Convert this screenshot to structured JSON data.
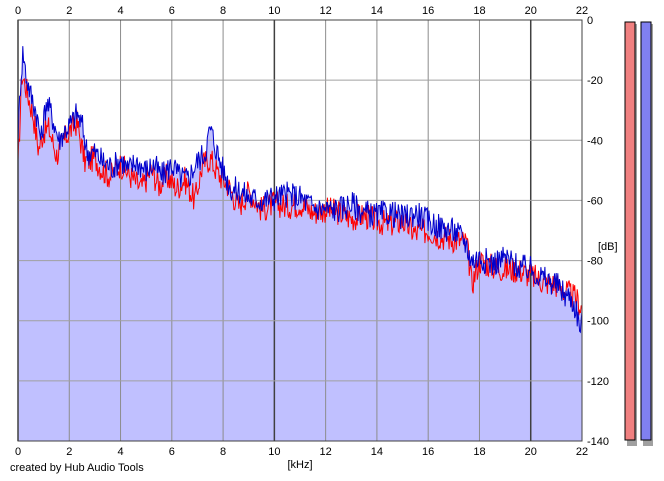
{
  "footer": {
    "credit": "created by Hub Audio Tools"
  },
  "chart_data": {
    "type": "area",
    "xlabel": "[kHz]",
    "ylabel": "[dB]",
    "xlim": [
      0,
      22
    ],
    "ylim": [
      -140,
      0
    ],
    "x_ticks": [
      0,
      2,
      4,
      6,
      8,
      10,
      12,
      14,
      16,
      18,
      20,
      22
    ],
    "y_ticks": [
      0,
      -20,
      -40,
      -60,
      -80,
      -100,
      -120,
      -140
    ],
    "grid": true,
    "fill_color": "#c0c0ff",
    "series": [
      {
        "color": "#ff0000",
        "points": [
          [
            0,
            -50
          ],
          [
            0.15,
            -18
          ],
          [
            0.3,
            -22
          ],
          [
            0.6,
            -32
          ],
          [
            0.8,
            -43
          ],
          [
            1.0,
            -37
          ],
          [
            1.2,
            -36
          ],
          [
            1.5,
            -45
          ],
          [
            2.0,
            -37
          ],
          [
            2.3,
            -34
          ],
          [
            2.6,
            -47
          ],
          [
            3.0,
            -46
          ],
          [
            3.3,
            -50
          ],
          [
            3.6,
            -52
          ],
          [
            4.0,
            -48
          ],
          [
            4.4,
            -52
          ],
          [
            4.8,
            -56
          ],
          [
            5.2,
            -50
          ],
          [
            5.5,
            -55
          ],
          [
            5.8,
            -52
          ],
          [
            6.2,
            -56
          ],
          [
            6.5,
            -53
          ],
          [
            6.9,
            -60
          ],
          [
            7.2,
            -48
          ],
          [
            7.5,
            -46
          ],
          [
            7.8,
            -51
          ],
          [
            8.2,
            -55
          ],
          [
            8.6,
            -62
          ],
          [
            9.0,
            -57
          ],
          [
            9.5,
            -63
          ],
          [
            10.0,
            -61
          ],
          [
            10.5,
            -62
          ],
          [
            11.0,
            -61
          ],
          [
            11.5,
            -64
          ],
          [
            12.0,
            -63
          ],
          [
            12.5,
            -64
          ],
          [
            13.0,
            -66
          ],
          [
            13.5,
            -65
          ],
          [
            14.0,
            -67
          ],
          [
            14.5,
            -68
          ],
          [
            15.0,
            -67
          ],
          [
            15.5,
            -71
          ],
          [
            16.0,
            -70
          ],
          [
            16.5,
            -72
          ],
          [
            17.0,
            -73
          ],
          [
            17.5,
            -74
          ],
          [
            17.7,
            -88
          ],
          [
            18.0,
            -80
          ],
          [
            18.5,
            -82
          ],
          [
            19.0,
            -83
          ],
          [
            19.5,
            -83
          ],
          [
            20.0,
            -85
          ],
          [
            20.5,
            -87
          ],
          [
            21.0,
            -88
          ],
          [
            21.5,
            -91
          ],
          [
            21.8,
            -93
          ],
          [
            22.0,
            -96
          ]
        ]
      },
      {
        "color": "#0000cc",
        "points": [
          [
            0,
            -40
          ],
          [
            0.1,
            -20
          ],
          [
            0.2,
            -10
          ],
          [
            0.3,
            -18
          ],
          [
            0.5,
            -25
          ],
          [
            0.7,
            -30
          ],
          [
            0.9,
            -40
          ],
          [
            1.1,
            -27
          ],
          [
            1.3,
            -31
          ],
          [
            1.6,
            -40
          ],
          [
            1.8,
            -37
          ],
          [
            2.1,
            -34
          ],
          [
            2.3,
            -31
          ],
          [
            2.5,
            -35
          ],
          [
            2.7,
            -44
          ],
          [
            3.0,
            -44
          ],
          [
            3.3,
            -47
          ],
          [
            3.7,
            -49
          ],
          [
            4.0,
            -46
          ],
          [
            4.3,
            -50
          ],
          [
            4.6,
            -47
          ],
          [
            5.0,
            -50
          ],
          [
            5.3,
            -48
          ],
          [
            5.6,
            -52
          ],
          [
            6.0,
            -48
          ],
          [
            6.3,
            -52
          ],
          [
            6.6,
            -53
          ],
          [
            7.0,
            -47
          ],
          [
            7.3,
            -44
          ],
          [
            7.5,
            -36
          ],
          [
            7.7,
            -42
          ],
          [
            8.0,
            -50
          ],
          [
            8.3,
            -56
          ],
          [
            8.7,
            -57
          ],
          [
            9.0,
            -59
          ],
          [
            9.5,
            -60
          ],
          [
            10.0,
            -59
          ],
          [
            10.5,
            -58
          ],
          [
            11.0,
            -59
          ],
          [
            11.5,
            -62
          ],
          [
            12.0,
            -63
          ],
          [
            12.5,
            -63
          ],
          [
            13.0,
            -61
          ],
          [
            13.5,
            -64
          ],
          [
            14.0,
            -65
          ],
          [
            14.5,
            -64
          ],
          [
            15.0,
            -66
          ],
          [
            15.5,
            -64
          ],
          [
            16.0,
            -67
          ],
          [
            16.5,
            -69
          ],
          [
            17.0,
            -70
          ],
          [
            17.4,
            -73
          ],
          [
            17.7,
            -80
          ],
          [
            18.0,
            -79
          ],
          [
            18.5,
            -81
          ],
          [
            19.0,
            -79
          ],
          [
            19.5,
            -82
          ],
          [
            20.0,
            -83
          ],
          [
            20.5,
            -86
          ],
          [
            21.0,
            -88
          ],
          [
            21.3,
            -91
          ],
          [
            21.6,
            -93
          ],
          [
            21.8,
            -97
          ],
          [
            21.9,
            -103
          ],
          [
            22.0,
            -98
          ]
        ]
      }
    ],
    "level_meters": [
      {
        "color": "#f08080"
      },
      {
        "color": "#8080f0"
      }
    ]
  }
}
